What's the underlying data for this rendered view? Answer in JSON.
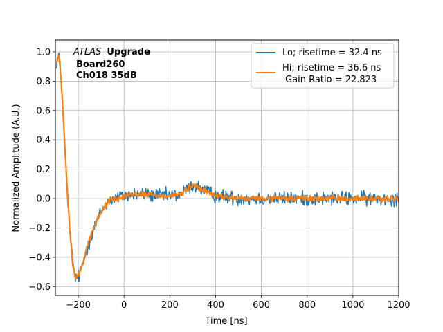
{
  "chart_data": {
    "type": "line",
    "xlabel": "Time [ns]",
    "ylabel": "Normalized Amplitude (A.U.)",
    "xlim": [
      -300,
      1200
    ],
    "ylim": [
      -0.66,
      1.08
    ],
    "xticks": [
      -200,
      0,
      200,
      400,
      600,
      800,
      1000,
      1200
    ],
    "yticks": [
      -0.6,
      -0.4,
      -0.2,
      0.0,
      0.2,
      0.4,
      0.6,
      0.8,
      1.0
    ],
    "grid": true,
    "legend_position": "top-right",
    "annotation": {
      "line1_italic": "ATLAS",
      "line1_bold": "Upgrade",
      "line2": "Board260",
      "line3": "Ch018 35dB"
    },
    "gain_ratio_label": " Gain Ratio = 22.823",
    "series": [
      {
        "name": "Lo; risetime = 32.4 ns",
        "color": "#1f77b4",
        "noise": 0.03,
        "x": [
          -295,
          -285,
          -275,
          -265,
          -255,
          -245,
          -235,
          -225,
          -215,
          -205,
          -195,
          -185,
          -175,
          -160,
          -140,
          -120,
          -100,
          -80,
          -60,
          -40,
          -20,
          0,
          50,
          100,
          150,
          200,
          250,
          280,
          300,
          320,
          350,
          400,
          500,
          600,
          700,
          800,
          900,
          1000,
          1100,
          1200
        ],
        "y": [
          0.93,
          0.98,
          0.82,
          0.55,
          0.25,
          -0.02,
          -0.25,
          -0.42,
          -0.53,
          -0.55,
          -0.52,
          -0.47,
          -0.42,
          -0.33,
          -0.24,
          -0.16,
          -0.09,
          -0.04,
          -0.01,
          0.0,
          0.01,
          0.02,
          0.03,
          0.03,
          0.02,
          0.02,
          0.03,
          0.07,
          0.09,
          0.08,
          0.05,
          0.02,
          0.0,
          0.0,
          0.0,
          0.0,
          0.0,
          0.0,
          0.0,
          0.0
        ]
      },
      {
        "name": "Hi; risetime = 36.6 ns",
        "color": "#ff7f0e",
        "noise": 0.012,
        "x": [
          -295,
          -285,
          -275,
          -265,
          -255,
          -245,
          -235,
          -225,
          -215,
          -205,
          -195,
          -185,
          -175,
          -160,
          -140,
          -120,
          -100,
          -80,
          -60,
          -40,
          -20,
          0,
          50,
          100,
          150,
          200,
          250,
          280,
          300,
          320,
          350,
          400,
          500,
          600,
          700,
          800,
          900,
          1000,
          1100,
          1200
        ],
        "y": [
          0.93,
          0.97,
          0.81,
          0.54,
          0.24,
          -0.03,
          -0.26,
          -0.43,
          -0.53,
          -0.54,
          -0.51,
          -0.46,
          -0.41,
          -0.32,
          -0.23,
          -0.15,
          -0.09,
          -0.04,
          -0.01,
          0.0,
          0.01,
          0.02,
          0.03,
          0.03,
          0.02,
          0.02,
          0.03,
          0.07,
          0.09,
          0.08,
          0.05,
          0.02,
          0.0,
          0.0,
          0.0,
          0.0,
          0.0,
          0.0,
          0.0,
          0.0
        ]
      }
    ]
  }
}
